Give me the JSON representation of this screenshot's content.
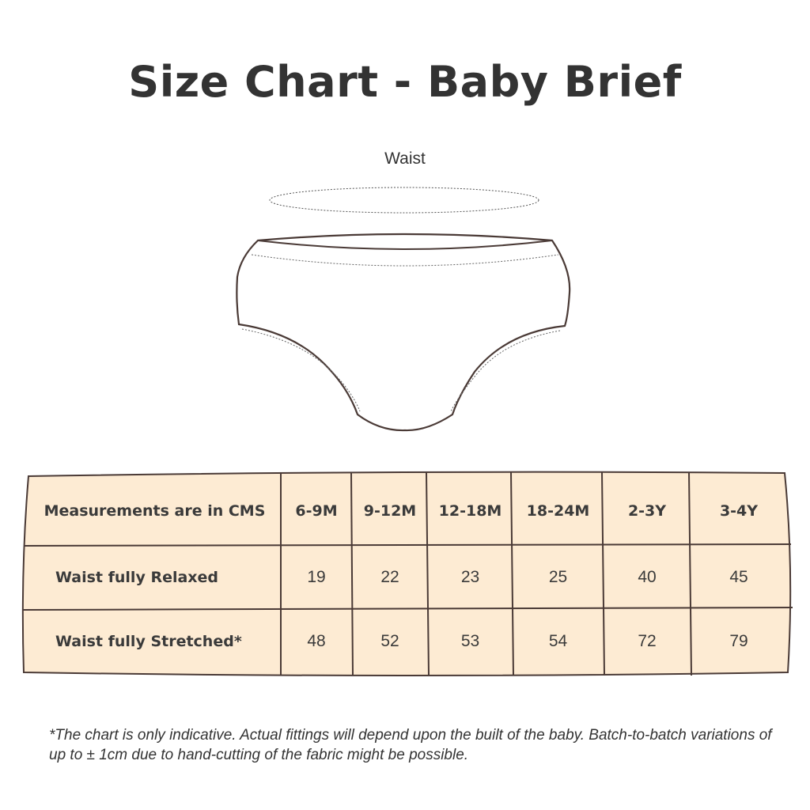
{
  "title": "Size Chart - Baby Brief",
  "illustration": {
    "waist_label": "Waist"
  },
  "colors": {
    "table_fill": "#fdebd3",
    "border": "#4a3a36",
    "text": "#333333"
  },
  "table": {
    "header": [
      "Measurements are in CMS",
      "6-9M",
      "9-12M",
      "12-18M",
      "18-24M",
      "2-3Y",
      "3-4Y"
    ],
    "rows": [
      {
        "label": "Waist fully Relaxed",
        "values": [
          "19",
          "22",
          "23",
          "25",
          "40",
          "45"
        ]
      },
      {
        "label": "Waist fully Stretched*",
        "values": [
          "48",
          "52",
          "53",
          "54",
          "72",
          "79"
        ]
      }
    ]
  },
  "footnote": "*The chart is only indicative. Actual fittings will depend upon the built of the baby. Batch-to-batch variations of up to ± 1cm due to hand-cutting of the fabric might be possible."
}
